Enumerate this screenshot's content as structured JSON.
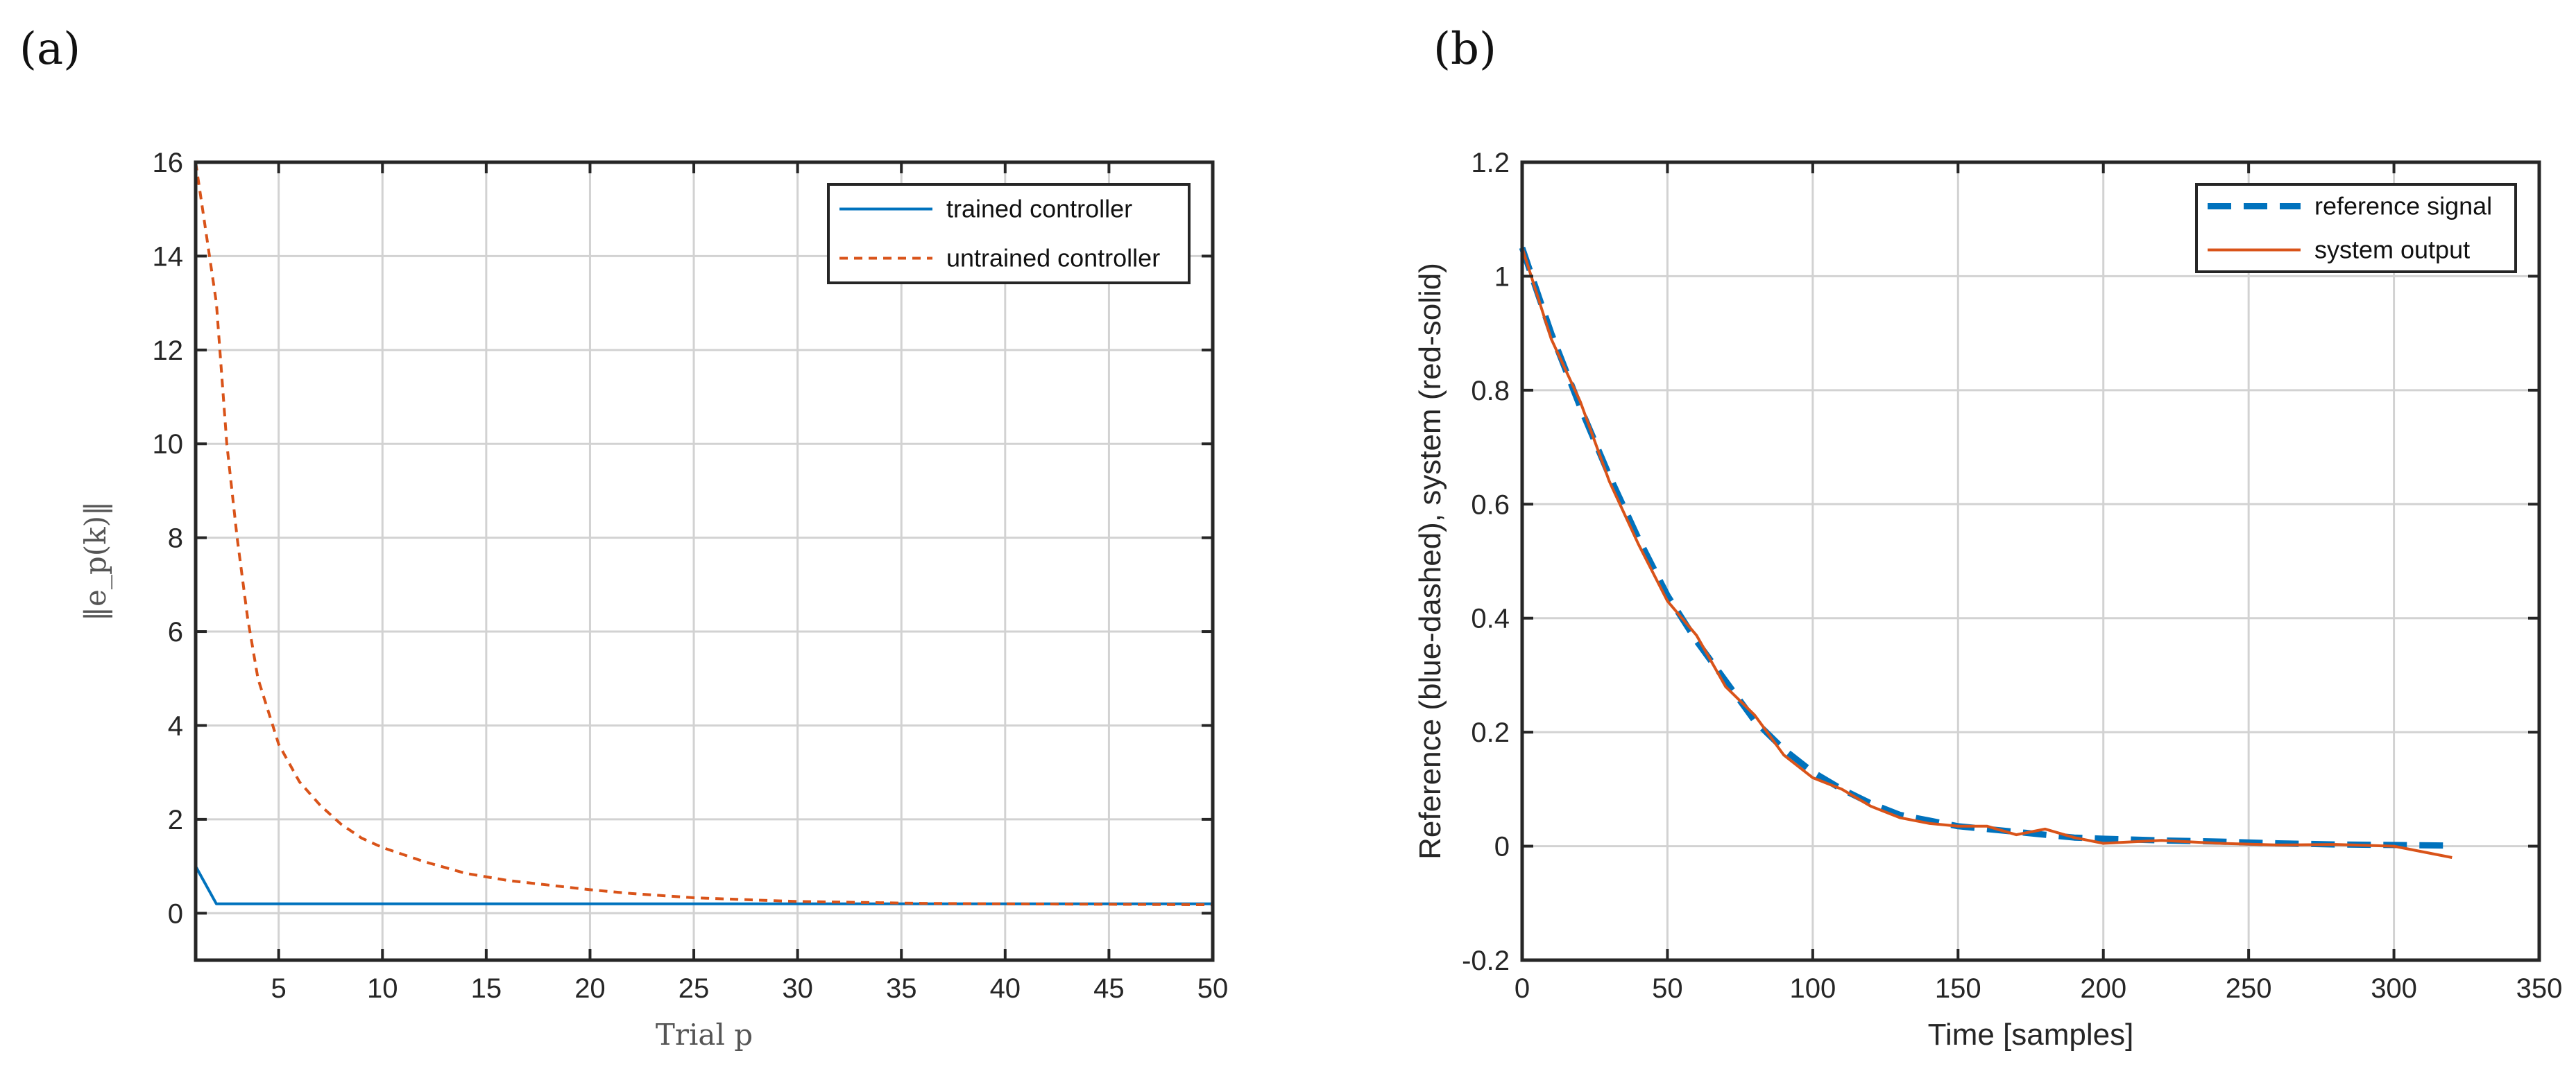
{
  "panels": {
    "a": {
      "label": "(a)"
    },
    "b": {
      "label": "(b)"
    }
  },
  "chart_data": [
    {
      "type": "line",
      "panel": "(a)",
      "xlabel": "Trial p",
      "ylabel": "‖e_p(k)‖",
      "xlim": [
        1,
        50
      ],
      "ylim": [
        -1,
        16
      ],
      "xticks": [
        5,
        10,
        15,
        20,
        25,
        30,
        35,
        40,
        45,
        50
      ],
      "yticks": [
        0,
        2,
        4,
        6,
        8,
        10,
        12,
        14,
        16
      ],
      "grid": true,
      "legend_position": "top-right",
      "series": [
        {
          "name": "trained controller",
          "color": "#0072BD",
          "style": "solid",
          "x": [
            1,
            2,
            3,
            5,
            10,
            15,
            20,
            25,
            30,
            35,
            40,
            45,
            50
          ],
          "y": [
            1.0,
            0.2,
            0.2,
            0.2,
            0.2,
            0.2,
            0.2,
            0.2,
            0.2,
            0.2,
            0.2,
            0.2,
            0.2
          ]
        },
        {
          "name": "untrained controller",
          "color": "#D95319",
          "style": "dashed",
          "x": [
            1,
            1.5,
            2,
            2.5,
            3,
            3.5,
            4,
            5,
            6,
            7,
            8,
            9,
            10,
            12,
            14,
            16,
            18,
            20,
            22,
            25,
            28,
            30,
            33,
            36,
            40,
            45,
            50
          ],
          "y": [
            16,
            14.5,
            13,
            10,
            8,
            6.3,
            5,
            3.6,
            2.8,
            2.3,
            1.9,
            1.6,
            1.4,
            1.1,
            0.85,
            0.7,
            0.6,
            0.5,
            0.42,
            0.33,
            0.28,
            0.25,
            0.23,
            0.21,
            0.2,
            0.19,
            0.18
          ]
        }
      ]
    },
    {
      "type": "line",
      "panel": "(b)",
      "xlabel": "Time [samples]",
      "ylabel": "Reference (blue-dashed), system (red-solid)",
      "xlim": [
        0,
        350
      ],
      "ylim": [
        -0.2,
        1.2
      ],
      "xticks": [
        0,
        50,
        100,
        150,
        200,
        250,
        300,
        350
      ],
      "yticks": [
        -0.2,
        0,
        0.2,
        0.4,
        0.6,
        0.8,
        1,
        1.2
      ],
      "grid": true,
      "legend_position": "top-right",
      "series": [
        {
          "name": "reference signal",
          "color": "#0072BD",
          "style": "dashed",
          "x": [
            0,
            10,
            20,
            30,
            40,
            50,
            60,
            70,
            80,
            90,
            100,
            110,
            120,
            130,
            140,
            150,
            160,
            170,
            180,
            190,
            200,
            220,
            240,
            260,
            280,
            300,
            320
          ],
          "y": [
            1.05,
            0.9,
            0.77,
            0.65,
            0.54,
            0.44,
            0.36,
            0.29,
            0.22,
            0.17,
            0.13,
            0.1,
            0.075,
            0.055,
            0.045,
            0.035,
            0.03,
            0.025,
            0.02,
            0.015,
            0.013,
            0.01,
            0.008,
            0.005,
            0.003,
            0.002,
            0.001
          ]
        },
        {
          "name": "system output",
          "color": "#D95319",
          "style": "solid",
          "x": [
            0,
            10,
            20,
            30,
            40,
            50,
            60,
            70,
            80,
            90,
            100,
            110,
            120,
            130,
            140,
            150,
            160,
            170,
            180,
            190,
            200,
            220,
            240,
            260,
            280,
            300,
            320
          ],
          "y": [
            1.05,
            0.89,
            0.78,
            0.64,
            0.53,
            0.43,
            0.37,
            0.28,
            0.23,
            0.16,
            0.12,
            0.1,
            0.07,
            0.05,
            0.04,
            0.035,
            0.035,
            0.02,
            0.03,
            0.015,
            0.005,
            0.01,
            0.005,
            0.002,
            0.003,
            0.0,
            -0.02
          ]
        }
      ]
    }
  ]
}
